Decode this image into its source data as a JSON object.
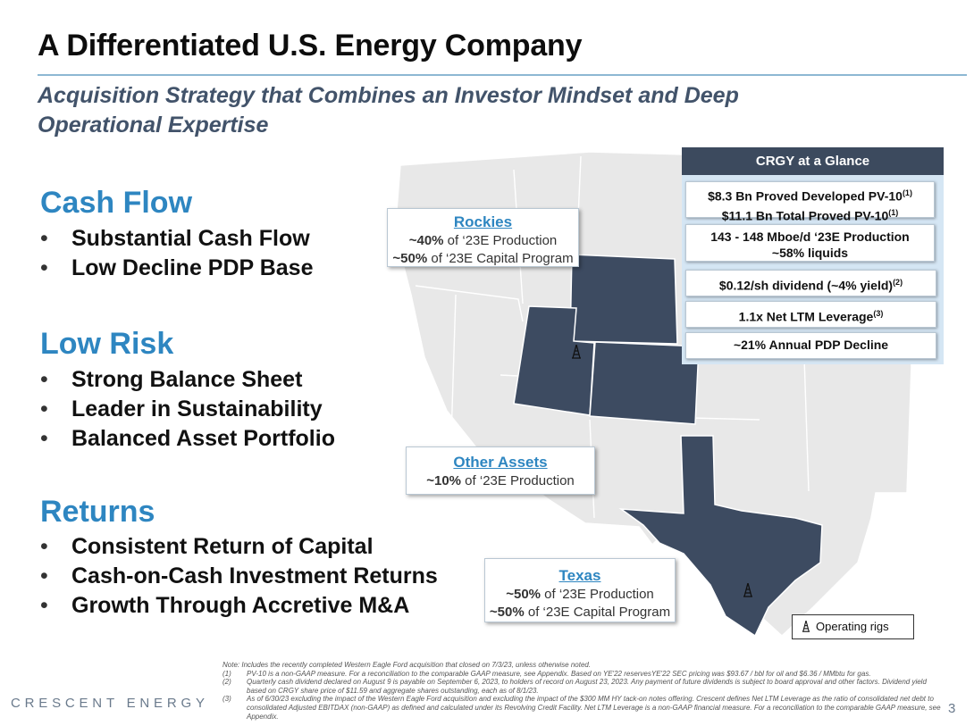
{
  "header": {
    "title": "A Differentiated U.S. Energy Company",
    "subtitle": "Acquisition Strategy that Combines an Investor Mindset and Deep Operational Expertise"
  },
  "sections": [
    {
      "heading": "Cash Flow",
      "bullets": [
        "Substantial Cash Flow",
        "Low Decline PDP Base"
      ]
    },
    {
      "heading": "Low Risk",
      "bullets": [
        "Strong Balance Sheet",
        "Leader in Sustainability",
        "Balanced Asset Portfolio"
      ]
    },
    {
      "heading": "Returns",
      "bullets": [
        "Consistent Return of Capital",
        "Cash-on-Cash Investment Returns",
        "Growth Through Accretive M&A"
      ]
    }
  ],
  "bullet_glyph": "•",
  "callouts": {
    "rockies": {
      "title": "Rockies",
      "prod_value": "~40%",
      "prod_text": " of ‘23E Production",
      "capex_value": "~50%",
      "capex_text": " of ‘23E Capital Program"
    },
    "other": {
      "title": "Other Assets",
      "prod_value": "~10%",
      "prod_text": " of ‘23E Production"
    },
    "texas": {
      "title": "Texas",
      "prod_value": "~50%",
      "prod_text": " of ‘23E Production",
      "capex_value": "~50%",
      "capex_text": " of ‘23E Capital Program"
    }
  },
  "glance": {
    "title": "CRGY at a Glance",
    "box1_line1": "$8.3 Bn Proved Developed PV-10",
    "box1_line1_note": "(1)",
    "box1_line2": "$11.1 Bn Total Proved PV-10",
    "box1_line2_note": "(1)",
    "box2_line1": "143 - 148 Mboe/d ‘23E Production",
    "box2_line2": "~58% liquids",
    "box3": "$0.12/sh dividend (~4% yield)",
    "box3_note": "(2)",
    "box4": "1.1x Net LTM Leverage",
    "box4_note": "(3)",
    "box5": "~21% Annual PDP Decline"
  },
  "legend": {
    "label": "Operating rigs",
    "icon": "oil-rig-icon"
  },
  "notes": {
    "intro": "Note: Includes the recently completed Western Eagle Ford acquisition that closed on 7/3/23, unless otherwise noted.",
    "items": [
      {
        "num": "(1)",
        "text": "PV-10 is a non-GAAP measure. For a reconciliation to the comparable GAAP measure, see Appendix. Based on YE'22 reservesYE'22 SEC pricing was $93.67 / bbl for oil and $6.36 / MMbtu for gas."
      },
      {
        "num": "(2)",
        "text": "Quarterly cash dividend declared on August 9 is payable on September 6, 2023, to holders of record on August 23, 2023. Any payment of future dividends is subject to board approval and other factors. Dividend yield based on CRGY share price of $11.59 and aggregate shares outstanding, each as of 8/1/23."
      },
      {
        "num": "(3)",
        "text": "As of 6/30/23 excluding the impact of the Western Eagle Ford acquisition and excluding the impact of the $300 MM HY tack-on notes offering. Crescent defines Net LTM Leverage as the ratio of consolidated net debt to consolidated Adjusted EBITDAX (non-GAAP) as defined and calculated under its Revolving Credit Facility. Net LTM Leverage is a non-GAAP financial measure. For a reconciliation to the comparable GAAP measure, see Appendix."
      }
    ]
  },
  "footer": {
    "brand": "CRESCENT ENERGY",
    "page_number": "3"
  },
  "colors": {
    "accent": "#2e86c1",
    "highlight_state": "#3d4b61",
    "map_land": "#e8e8e8",
    "glance_header": "#3c4a5e"
  }
}
